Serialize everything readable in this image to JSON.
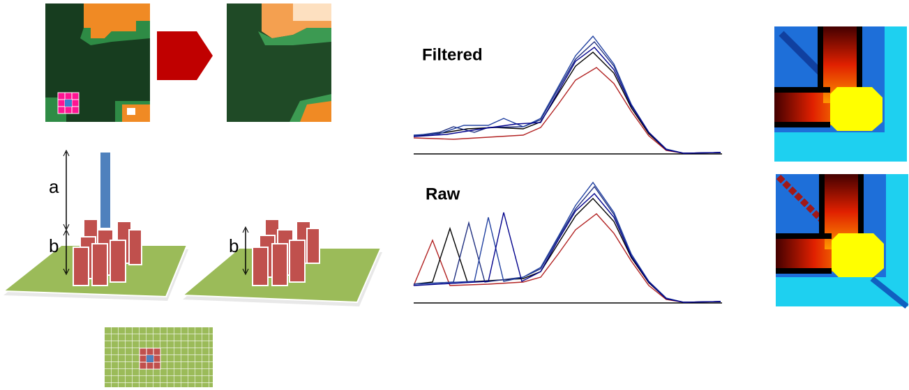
{
  "scene_tall_bar": {
    "label_a": "a",
    "label_b": "b"
  },
  "scene_filtered": {
    "label_b": "b"
  },
  "chart_filtered": {
    "title": "Filtered"
  },
  "chart_raw": {
    "title": "Raw"
  }
}
